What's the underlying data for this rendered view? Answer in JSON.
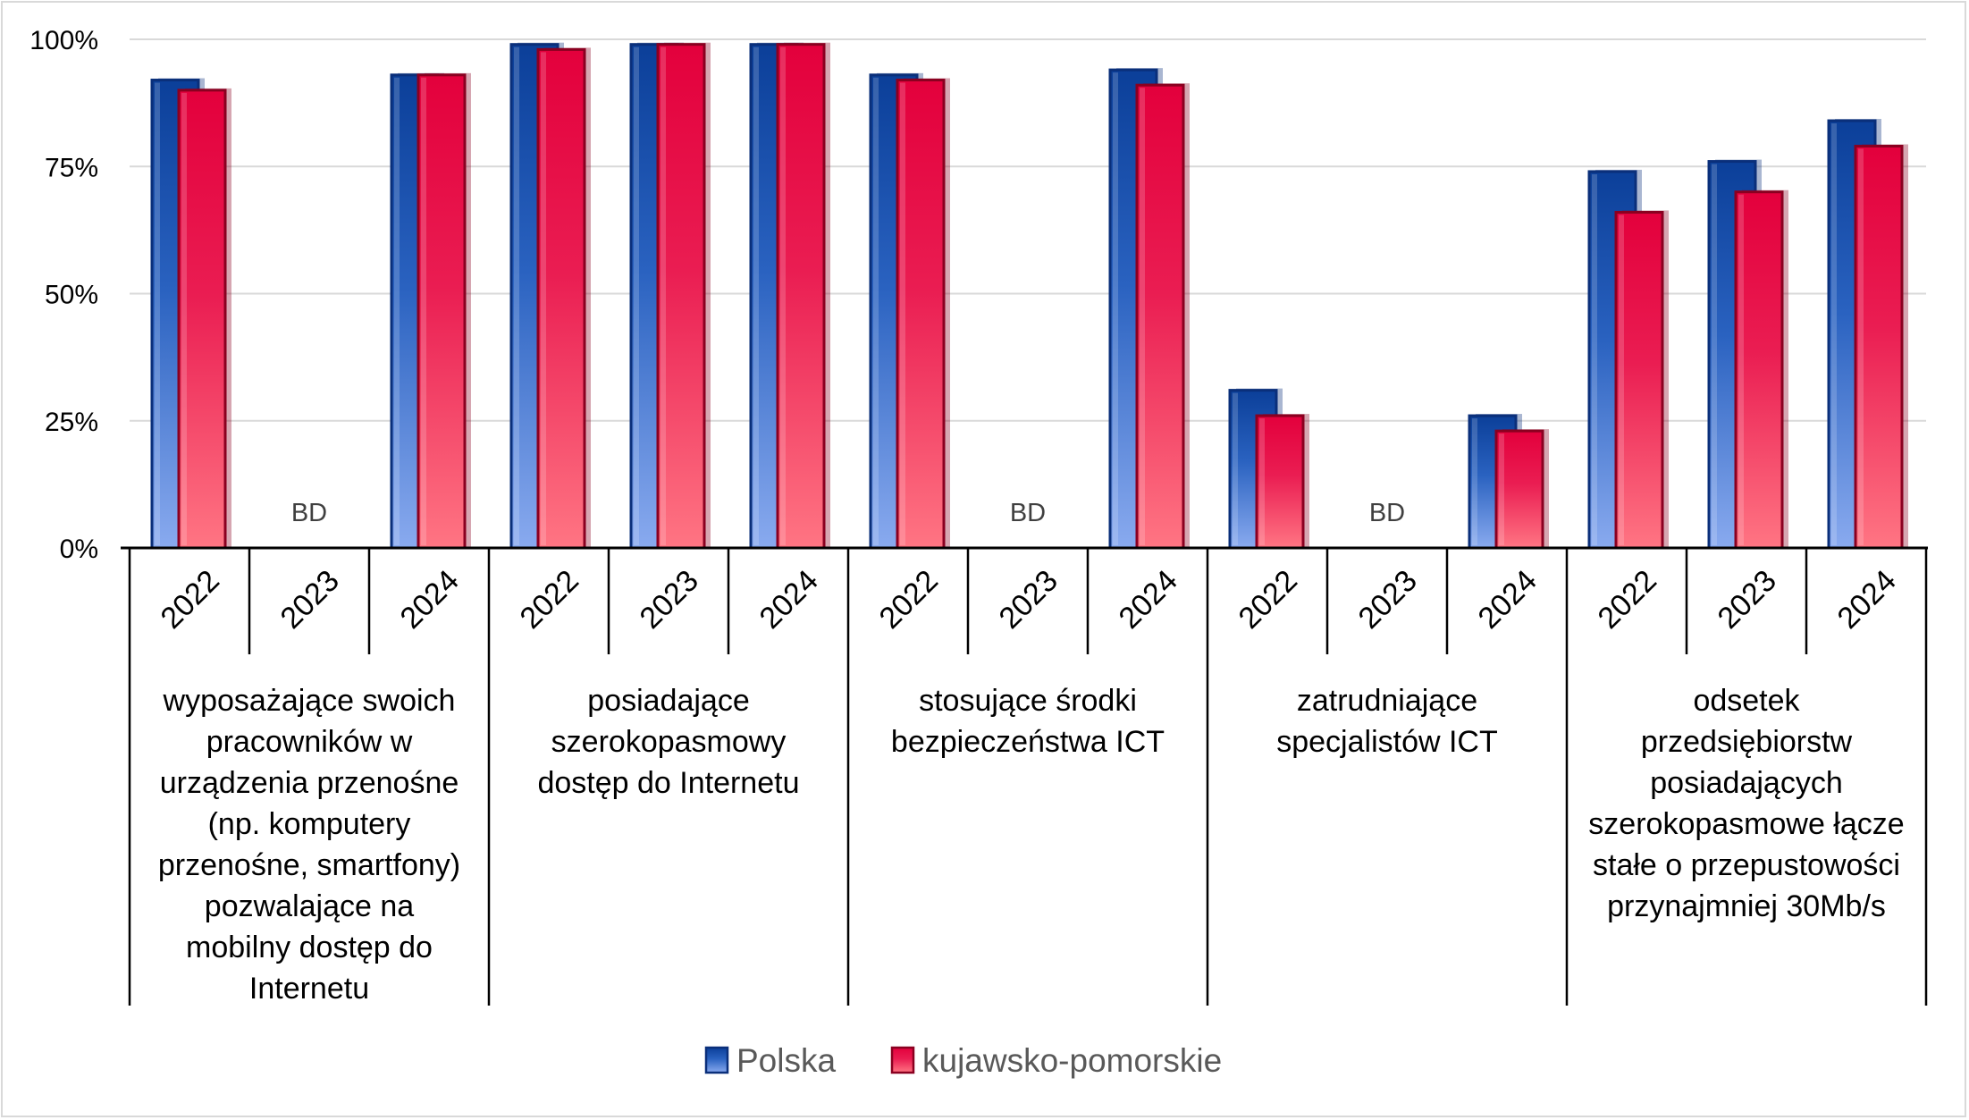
{
  "chart_data": {
    "type": "bar",
    "ylim": [
      0,
      100
    ],
    "y_ticks": [
      "0%",
      "25%",
      "50%",
      "75%",
      "100%"
    ],
    "grid": true,
    "legend_position": "bottom",
    "missing_label": "BD",
    "groups": [
      {
        "label_lines": [
          "wyposażające swoich",
          "pracowników w",
          "urządzenia przenośne",
          "(np. komputery",
          "przenośne, smartfony)",
          "pozwalające na",
          "mobilny dostęp do",
          "Internetu"
        ],
        "years": [
          "2022",
          "2023",
          "2024"
        ]
      },
      {
        "label_lines": [
          "posiadające",
          "szerokopasmowy",
          "dostęp do Internetu"
        ],
        "years": [
          "2022",
          "2023",
          "2024"
        ]
      },
      {
        "label_lines": [
          "stosujące środki",
          "bezpieczeństwa ICT"
        ],
        "years": [
          "2022",
          "2023",
          "2024"
        ]
      },
      {
        "label_lines": [
          "zatrudniające",
          "specjalistów ICT"
        ],
        "years": [
          "2022",
          "2023",
          "2024"
        ]
      },
      {
        "label_lines": [
          "odsetek",
          "przedsiębiorstw",
          "posiadających",
          "szerokopasmowe łącze",
          "stałe o przepustowości",
          "przynajmniej 30Mb/s"
        ],
        "years": [
          "2022",
          "2023",
          "2024"
        ]
      }
    ],
    "series": [
      {
        "name": "Polska",
        "color": "#1a4ba8",
        "values": [
          92,
          null,
          93,
          99,
          99,
          99,
          93,
          null,
          94,
          31,
          null,
          26,
          74,
          76,
          84
        ]
      },
      {
        "name": "kujawsko-pomorskie",
        "color": "#e8003f",
        "values": [
          90,
          null,
          93,
          98,
          99,
          99,
          92,
          null,
          91,
          26,
          null,
          23,
          66,
          70,
          79
        ]
      }
    ]
  }
}
